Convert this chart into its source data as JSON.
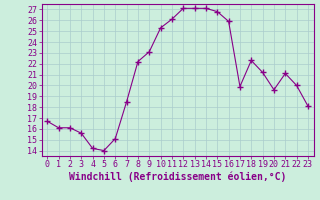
{
  "hours": [
    0,
    1,
    2,
    3,
    4,
    5,
    6,
    7,
    8,
    9,
    10,
    11,
    12,
    13,
    14,
    15,
    16,
    17,
    18,
    19,
    20,
    21,
    22,
    23
  ],
  "values": [
    16.7,
    16.1,
    16.1,
    15.6,
    14.2,
    14.0,
    15.1,
    18.5,
    22.2,
    23.1,
    25.3,
    26.1,
    27.1,
    27.1,
    27.1,
    26.8,
    25.9,
    19.9,
    22.3,
    21.2,
    19.6,
    21.1,
    20.0,
    18.1
  ],
  "line_color": "#880088",
  "marker": "+",
  "marker_size": 4,
  "bg_color": "#cceedd",
  "grid_color": "#aacccc",
  "xlabel": "Windchill (Refroidissement éolien,°C)",
  "xlabel_color": "#880088",
  "ylim_min": 13.5,
  "ylim_max": 27.5,
  "yticks": [
    14,
    15,
    16,
    17,
    18,
    19,
    20,
    21,
    22,
    23,
    24,
    25,
    26,
    27
  ],
  "xticks": [
    0,
    1,
    2,
    3,
    4,
    5,
    6,
    7,
    8,
    9,
    10,
    11,
    12,
    13,
    14,
    15,
    16,
    17,
    18,
    19,
    20,
    21,
    22,
    23
  ],
  "tick_color": "#880088",
  "spine_color": "#880088",
  "tick_fontsize": 6,
  "xlabel_fontsize": 7
}
